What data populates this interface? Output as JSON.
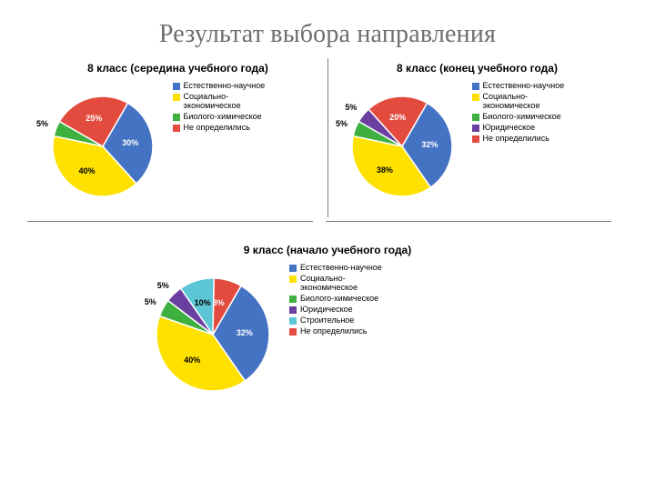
{
  "page": {
    "title": "Результат выбора направления",
    "title_color": "#6e6e6e",
    "title_fontsize": 28
  },
  "charts": {
    "grade8_mid": {
      "type": "pie",
      "title": "8 класс (середина учебного года)",
      "title_fontsize": 12,
      "pie_radius": 55,
      "slices": [
        {
          "label": "Естественно-научное",
          "value": 30,
          "color": "#4573c4",
          "text_color": "#ffffff"
        },
        {
          "label": "Социально-\nэкономическое",
          "value": 40,
          "color": "#ffe100",
          "text_color": "#000000"
        },
        {
          "label": "Биолого-химическое",
          "value": 5,
          "color": "#3db040",
          "text_color": "#000000",
          "outside": true
        },
        {
          "label": "Не определились",
          "value": 25,
          "color": "#e34b3e",
          "text_color": "#ffffff"
        }
      ],
      "legend_items": [
        {
          "label": "Естественно-научное",
          "color": "#4573c4"
        },
        {
          "label": "Социально-\nэкономическое",
          "color": "#ffe100"
        },
        {
          "label": "Биолого-химическое",
          "color": "#3db040"
        },
        {
          "label": "Не определились",
          "color": "#e34b3e"
        }
      ],
      "start_angle_deg": -60
    },
    "grade8_end": {
      "type": "pie",
      "title": "8 класс (конец учебного года)",
      "title_fontsize": 12,
      "pie_radius": 55,
      "slices": [
        {
          "label": "Естественно-научное",
          "value": 32,
          "color": "#4573c4",
          "text_color": "#ffffff"
        },
        {
          "label": "Социально-\nэкономическое",
          "value": 38,
          "color": "#ffe100",
          "text_color": "#000000"
        },
        {
          "label": "Биолого-химическое",
          "value": 5,
          "color": "#3db040",
          "text_color": "#000000",
          "outside": true
        },
        {
          "label": "Юридическое",
          "value": 5,
          "color": "#6b3fa0",
          "text_color": "#000000",
          "outside": true
        },
        {
          "label": "Не определились",
          "value": 20,
          "color": "#e34b3e",
          "text_color": "#ffffff"
        }
      ],
      "legend_items": [
        {
          "label": "Естественно-научное",
          "color": "#4573c4"
        },
        {
          "label": "Социально-\nэкономическое",
          "color": "#ffe100"
        },
        {
          "label": "Биолого-химическое",
          "color": "#3db040"
        },
        {
          "label": "Юридическое",
          "color": "#6b3fa0"
        },
        {
          "label": "Не определились",
          "color": "#e34b3e"
        }
      ],
      "start_angle_deg": -60
    },
    "grade9_start": {
      "type": "pie",
      "title": "9 класс (начало учебного года)",
      "title_fontsize": 12,
      "pie_radius": 62,
      "slices": [
        {
          "label": "Естественно-научное",
          "value": 32,
          "color": "#4573c4",
          "text_color": "#ffffff"
        },
        {
          "label": "Социально-\nэкономическое",
          "value": 40,
          "color": "#ffe100",
          "text_color": "#000000"
        },
        {
          "label": "Биолого-химическое",
          "value": 5,
          "color": "#3db040",
          "text_color": "#000000",
          "outside": true
        },
        {
          "label": "Юридическое",
          "value": 5,
          "color": "#6b3fa0",
          "text_color": "#000000",
          "outside": true
        },
        {
          "label": "Строительное",
          "value": 10,
          "color": "#5cc6d6",
          "text_color": "#000000"
        },
        {
          "label": "Не определились",
          "value": 8,
          "color": "#e34b3e",
          "text_color": "#ffffff"
        }
      ],
      "legend_items": [
        {
          "label": "Естественно-научное",
          "color": "#4573c4"
        },
        {
          "label": "Социально-\nэкономическое",
          "color": "#ffe100"
        },
        {
          "label": "Биолого-химическое",
          "color": "#3db040"
        },
        {
          "label": "Юридическое",
          "color": "#6b3fa0"
        },
        {
          "label": "Строительное",
          "color": "#5cc6d6"
        },
        {
          "label": "Не определились",
          "color": "#e34b3e"
        }
      ],
      "start_angle_deg": -60
    }
  },
  "style": {
    "slice_border_color": "#ffffff",
    "slice_border_width": 1.5,
    "divider_color": "#7f7f7f",
    "background_color": "#ffffff"
  }
}
